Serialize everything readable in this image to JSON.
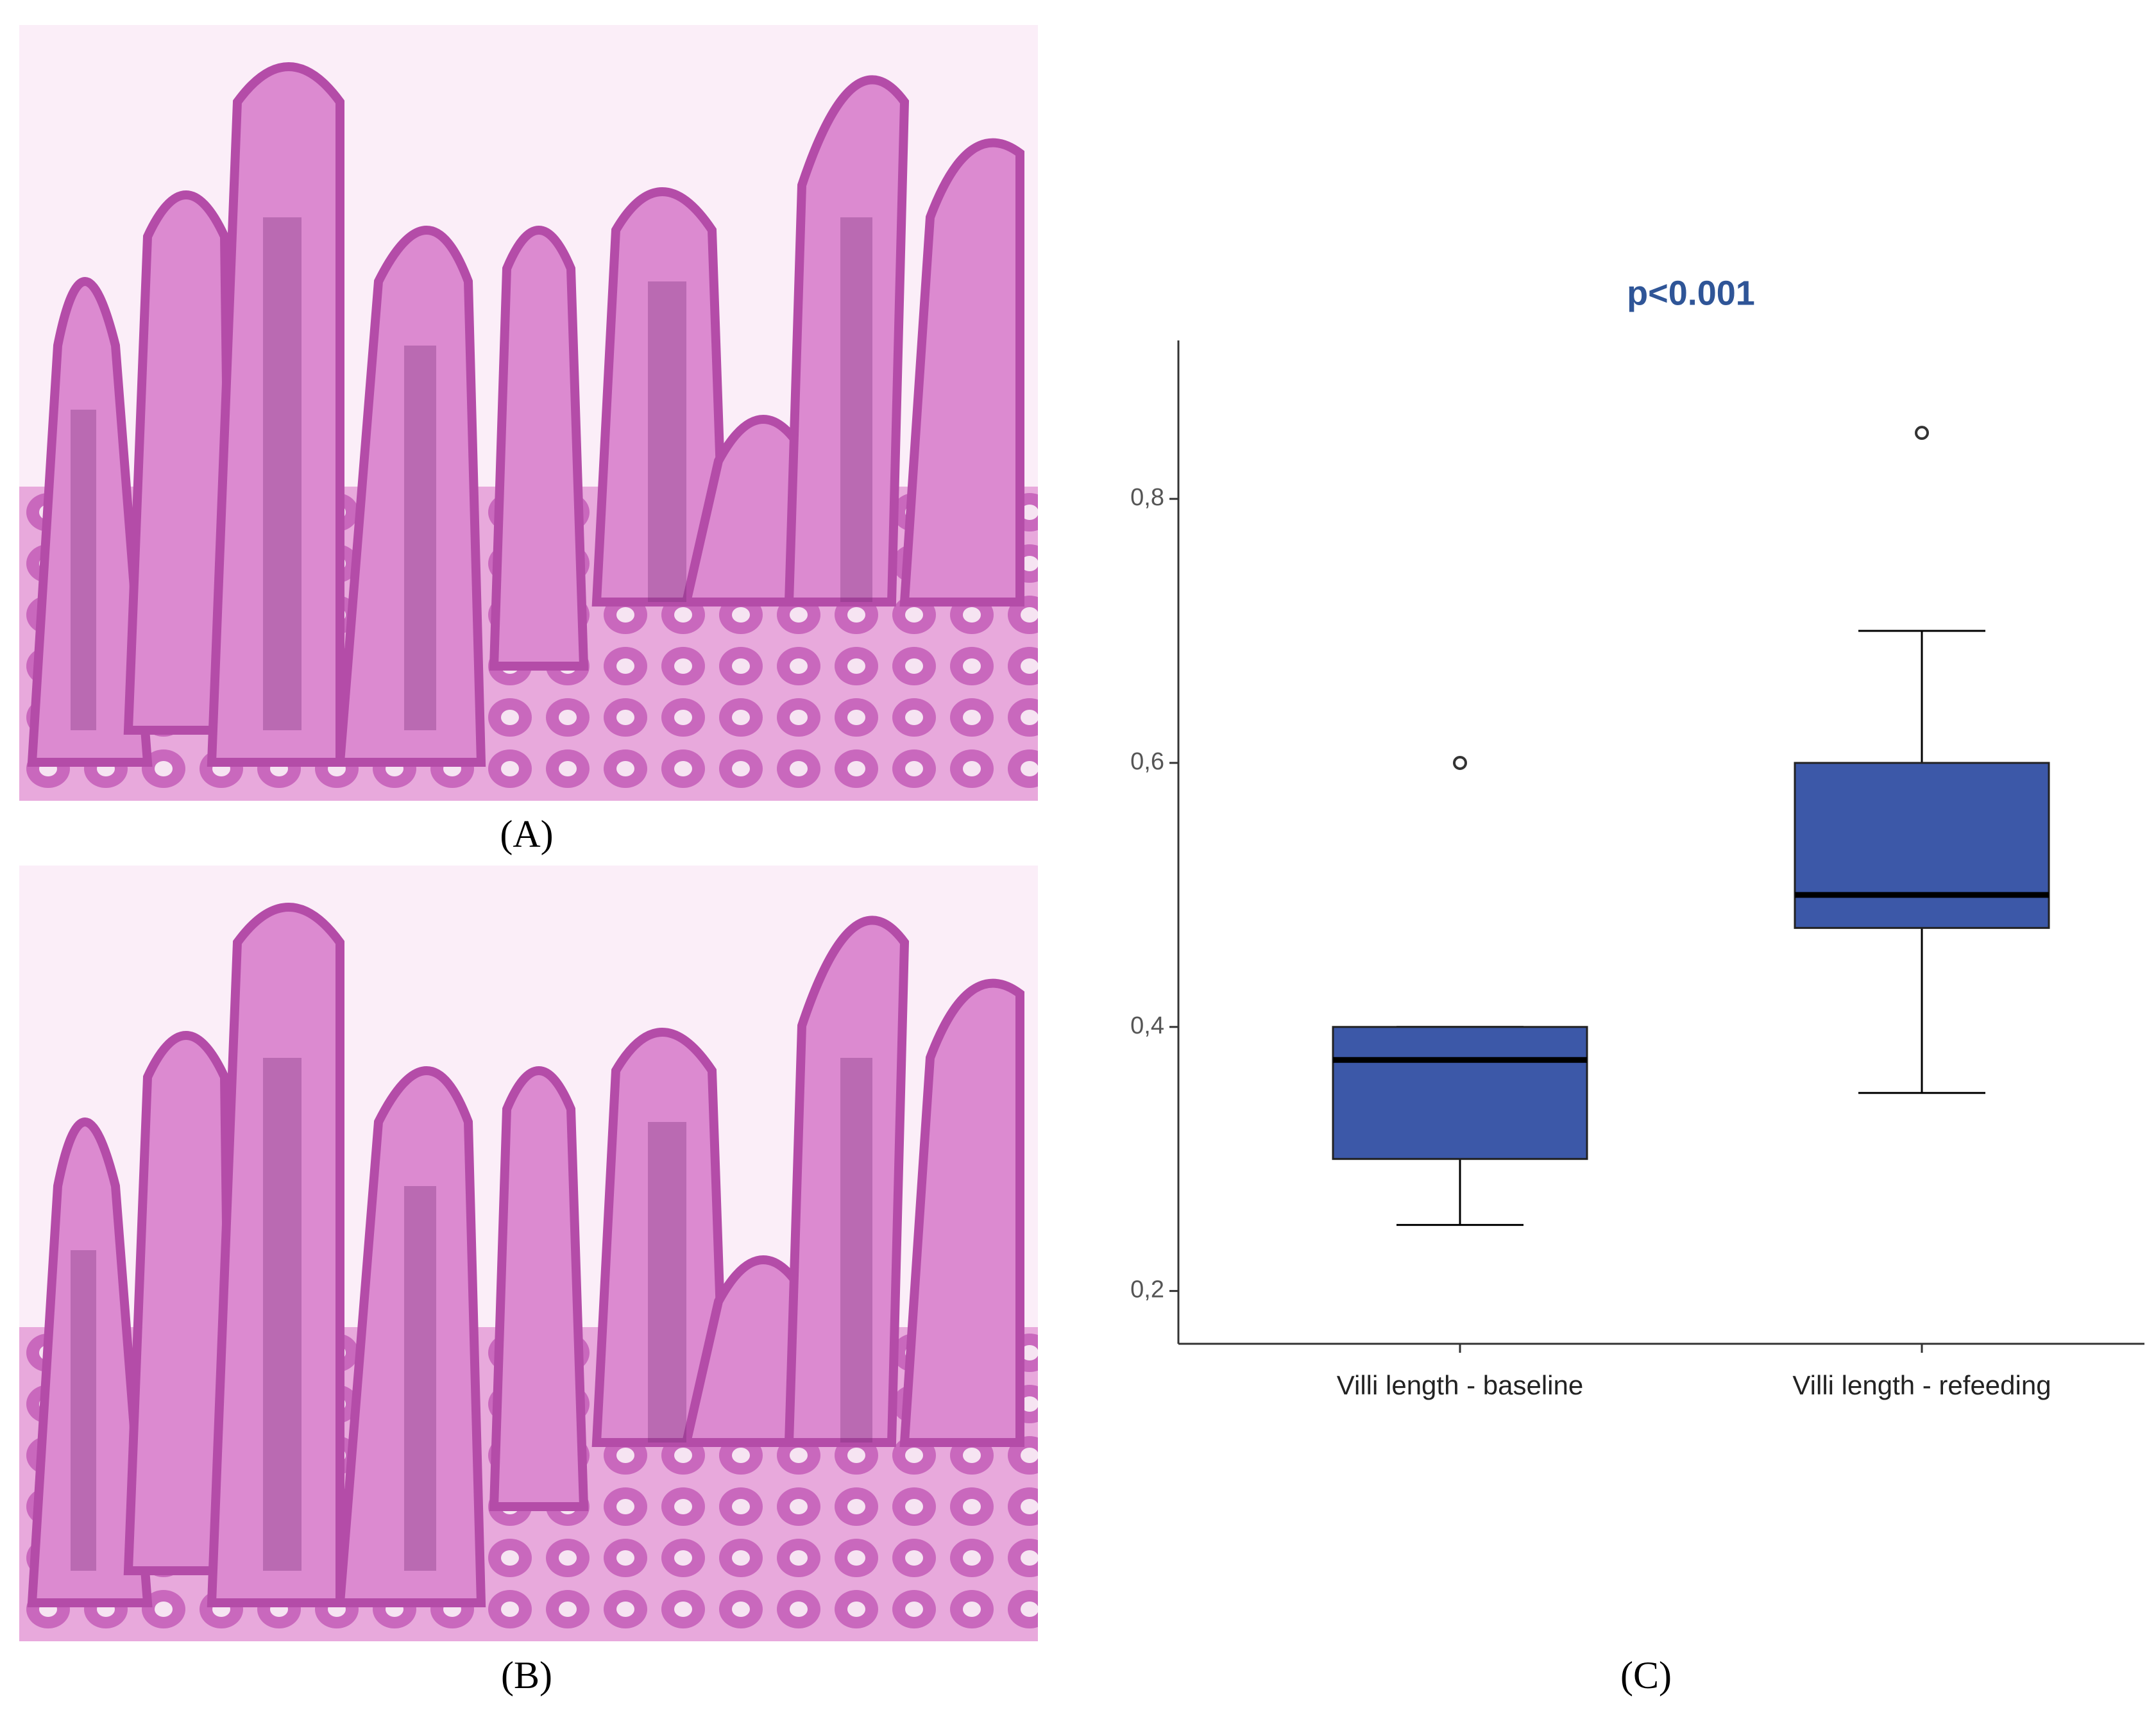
{
  "panels": {
    "labels": [
      "(A)",
      "(B)",
      "(C)"
    ]
  },
  "chart_data": {
    "type": "box",
    "title": "p<0.001",
    "categories": [
      "Villi length - baseline",
      "Villi length - refeeding"
    ],
    "boxes": [
      {
        "whislo": 0.25,
        "q1": 0.3,
        "med": 0.375,
        "q3": 0.4,
        "whishi": 0.4,
        "fliers": [
          0.6
        ]
      },
      {
        "whislo": 0.35,
        "q1": 0.475,
        "med": 0.5,
        "q3": 0.6,
        "whishi": 0.7,
        "fliers": [
          0.85
        ]
      }
    ],
    "color": "#3c58a8",
    "ylim": [
      0.16,
      0.92
    ],
    "yticks": [
      {
        "value": 0.2,
        "label": "0,2"
      },
      {
        "value": 0.4,
        "label": "0,4"
      },
      {
        "value": 0.6,
        "label": "0,6"
      },
      {
        "value": 0.8,
        "label": "0,8"
      }
    ]
  }
}
